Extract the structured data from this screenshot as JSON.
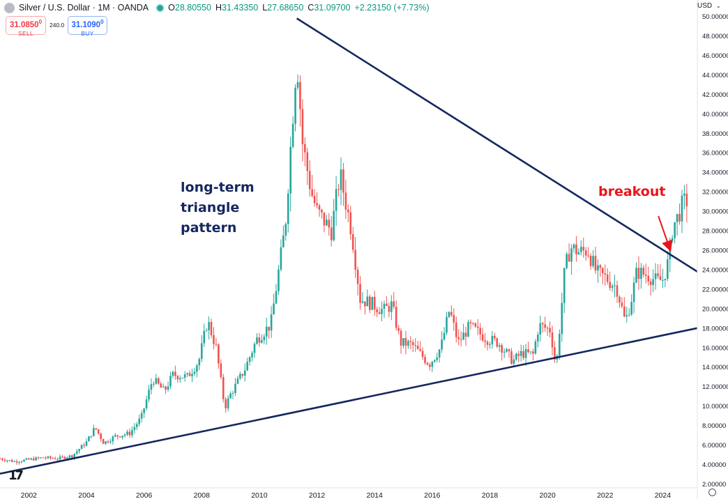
{
  "header": {
    "symbol": "Silver / U.S. Dollar · 1M · OANDA",
    "ohlc": [
      {
        "k": "O",
        "v": "28.80550"
      },
      {
        "k": "H",
        "v": "31.43350"
      },
      {
        "k": "L",
        "v": "27.68650"
      },
      {
        "k": "C",
        "v": "31.09700"
      }
    ],
    "change": "+2.23150 (+7.73%)",
    "market_status_color": "#26a69a"
  },
  "trade": {
    "sell_price": "31.0850",
    "sell_sup": "0",
    "sell_label": "SELL",
    "spread": "240.0",
    "buy_price": "31.1090",
    "buy_sup": "0",
    "buy_label": "BUY"
  },
  "currency": "USD",
  "annotations": {
    "triangle_label": [
      "long-term",
      "triangle",
      "pattern"
    ],
    "breakout": "breakout"
  },
  "colors": {
    "up": "#26a69a",
    "down": "#ef5350",
    "trendline": "#14275e",
    "annotation_red": "#e8141c"
  },
  "chart_data": {
    "type": "candlestick",
    "title": "Silver / U.S. Dollar · 1M · OANDA",
    "xlabel": "",
    "ylabel": "",
    "x_ticks": [
      "2002",
      "2004",
      "2006",
      "2008",
      "2010",
      "2012",
      "2014",
      "2016",
      "2018",
      "2020",
      "2022",
      "2024"
    ],
    "y_ticks": [
      "2.00000",
      "4.00000",
      "6.00000",
      "8.00000",
      "10.00000",
      "12.00000",
      "14.00000",
      "16.00000",
      "18.00000",
      "20.00000",
      "22.00000",
      "24.00000",
      "26.00000",
      "28.00000",
      "30.00000",
      "32.00000",
      "34.00000",
      "36.00000",
      "38.00000",
      "40.00000",
      "42.00000",
      "44.00000",
      "46.00000",
      "48.00000",
      "50.00000"
    ],
    "xlim": [
      2001.0,
      2025.2
    ],
    "ylim": [
      1.6,
      50.4
    ],
    "price_path": [
      [
        2001.0,
        4.6
      ],
      [
        2001.5,
        4.3
      ],
      [
        2002.0,
        4.5
      ],
      [
        2002.5,
        4.7
      ],
      [
        2003.0,
        4.6
      ],
      [
        2003.5,
        4.9
      ],
      [
        2004.0,
        6.3
      ],
      [
        2004.3,
        7.8
      ],
      [
        2004.6,
        6.2
      ],
      [
        2005.0,
        6.9
      ],
      [
        2005.5,
        7.2
      ],
      [
        2005.9,
        8.8
      ],
      [
        2006.3,
        12.8
      ],
      [
        2006.7,
        11.5
      ],
      [
        2007.0,
        13.2
      ],
      [
        2007.5,
        13.0
      ],
      [
        2007.9,
        14.6
      ],
      [
        2008.2,
        18.8
      ],
      [
        2008.5,
        16.0
      ],
      [
        2008.8,
        9.8
      ],
      [
        2009.0,
        11.2
      ],
      [
        2009.5,
        13.8
      ],
      [
        2009.9,
        16.8
      ],
      [
        2010.4,
        18.4
      ],
      [
        2010.9,
        28.5
      ],
      [
        2011.3,
        46.0
      ],
      [
        2011.5,
        37.0
      ],
      [
        2011.8,
        32.0
      ],
      [
        2012.0,
        30.0
      ],
      [
        2012.5,
        28.0
      ],
      [
        2012.8,
        33.8
      ],
      [
        2013.2,
        28.0
      ],
      [
        2013.5,
        21.0
      ],
      [
        2013.9,
        20.5
      ],
      [
        2014.3,
        19.8
      ],
      [
        2014.6,
        20.4
      ],
      [
        2014.9,
        16.5
      ],
      [
        2015.3,
        16.3
      ],
      [
        2015.9,
        14.3
      ],
      [
        2016.3,
        16.0
      ],
      [
        2016.6,
        19.9
      ],
      [
        2016.9,
        16.5
      ],
      [
        2017.3,
        18.2
      ],
      [
        2017.9,
        16.9
      ],
      [
        2018.3,
        16.5
      ],
      [
        2018.8,
        14.6
      ],
      [
        2019.1,
        15.4
      ],
      [
        2019.5,
        15.3
      ],
      [
        2019.7,
        18.3
      ],
      [
        2020.1,
        17.8
      ],
      [
        2020.3,
        13.9
      ],
      [
        2020.6,
        24.0
      ],
      [
        2020.8,
        26.3
      ],
      [
        2021.1,
        25.8
      ],
      [
        2021.4,
        26.0
      ],
      [
        2021.7,
        23.7
      ],
      [
        2022.0,
        23.2
      ],
      [
        2022.4,
        22.2
      ],
      [
        2022.7,
        18.6
      ],
      [
        2022.9,
        20.8
      ],
      [
        2023.1,
        23.8
      ],
      [
        2023.5,
        23.4
      ],
      [
        2023.8,
        22.8
      ],
      [
        2024.0,
        23.0
      ],
      [
        2024.2,
        24.9
      ],
      [
        2024.35,
        28.5
      ],
      [
        2024.5,
        29.3
      ],
      [
        2024.7,
        30.8
      ],
      [
        2024.85,
        31.1
      ]
    ],
    "annotation_marks": {
      "upper_trendline": [
        [
          2011.3,
          49.8
        ],
        [
          2025.2,
          23.8
        ]
      ],
      "lower_trendline": [
        [
          2001.0,
          3.05
        ],
        [
          2025.2,
          18.0
        ]
      ],
      "breakout_arrow": [
        [
          2023.85,
          29.5
        ],
        [
          2024.25,
          26.1
        ]
      ]
    }
  }
}
